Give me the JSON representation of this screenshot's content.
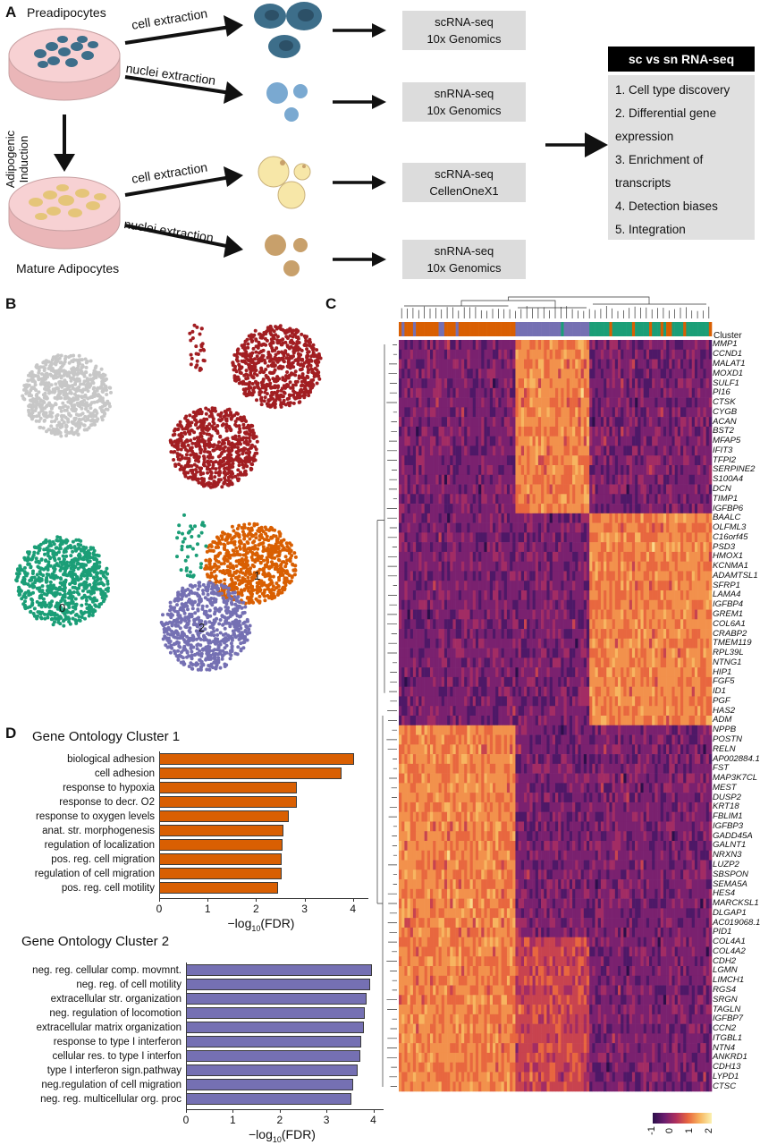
{
  "panel_letters": {
    "a": "A",
    "b": "B",
    "c": "C",
    "d": "D"
  },
  "panel_a": {
    "preadipocytes": "Preadipocytes",
    "mature": "Mature Adipocytes",
    "induction": "Adipogenic Induction",
    "cell_extraction": "cell extraction",
    "nuclei_extraction": "nuclei extraction",
    "boxes": [
      {
        "line1": "scRNA-seq",
        "line2": "10x Genomics"
      },
      {
        "line1": "snRNA-seq",
        "line2": "10x Genomics"
      },
      {
        "line1": "scRNA-seq",
        "line2": "CellenOneX1"
      },
      {
        "line1": "snRNA-seq",
        "line2": "10x Genomics"
      }
    ],
    "summary_title": "sc vs sn RNA-seq",
    "summary_items": [
      "1. Cell type discovery",
      "2. Differential gene",
      "expression",
      "3. Enrichment of",
      "transcripts",
      "4. Detection biases",
      "5. Integration"
    ],
    "colors": {
      "dish": "#f4c6c8",
      "preadip_cell": "#3d6e8a",
      "sn_nucleus": "#7aa9d1",
      "mature_cell": "#f7e7a8",
      "mature_nucleus": "#c8a06b"
    }
  },
  "panel_b": {
    "cluster_labels": [
      "0",
      "1",
      "2"
    ],
    "colors": {
      "gray": "#c7c7c7",
      "red": "#a21e22",
      "green": "#1b9e77",
      "orange": "#d95f02",
      "purple": "#7570b3"
    }
  },
  "panel_c": {
    "cluster_label": "Cluster",
    "genes": [
      "MMP1",
      "CCND1",
      "MALAT1",
      "MOXD1",
      "SULF1",
      "PI16",
      "CTSK",
      "CYGB",
      "ACAN",
      "BST2",
      "MFAP5",
      "IFIT3",
      "TFPI2",
      "SERPINE2",
      "S100A4",
      "DCN",
      "TIMP1",
      "IGFBP6",
      "BAALC",
      "OLFML3",
      "C16orf45",
      "PSD3",
      "HMOX1",
      "KCNMA1",
      "ADAMTSL1",
      "SFRP1",
      "LAMA4",
      "IGFBP4",
      "GREM1",
      "COL6A1",
      "CRABP2",
      "TMEM119",
      "RPL39L",
      "NTNG1",
      "HIP1",
      "FGF5",
      "ID1",
      "PGF",
      "HAS2",
      "ADM",
      "NPPB",
      "POSTN",
      "RELN",
      "AP002884.1",
      "FST",
      "MAP3K7CL",
      "MEST",
      "DUSP2",
      "KRT18",
      "FBLIM1",
      "IGFBP3",
      "GADD45A",
      "GALNT1",
      "NRXN3",
      "LUZP2",
      "SBSPON",
      "SEMA5A",
      "HES4",
      "MARCKSL1",
      "DLGAP1",
      "AC019068.1",
      "PID1",
      "COL4A1",
      "COL4A2",
      "CDH2",
      "LGMN",
      "LIMCH1",
      "RGS4",
      "SRGN",
      "TAGLN",
      "IGFBP7",
      "CCN2",
      "ITGBL1",
      "NTN4",
      "ANKRD1",
      "CDH13",
      "LYPD1",
      "CTSC"
    ],
    "colorbar_ticks": [
      "-1",
      "0",
      "1",
      "2"
    ],
    "cluster_colors": [
      "#d95f02",
      "#7570b3",
      "#1b9e77"
    ]
  },
  "panel_d": {
    "title1": "Gene Ontology Cluster 1",
    "title2": "Gene Ontology Cluster 2",
    "xlabel_main": "−log",
    "xlabel_sub": "10",
    "xlabel_tail": "(FDR)",
    "ticks": [
      "0",
      "1",
      "2",
      "3",
      "4"
    ]
  },
  "chart_data": [
    {
      "type": "bar",
      "title": "Gene Ontology Cluster 1",
      "xlabel": "−log10(FDR)",
      "orientation": "horizontal",
      "color": "#d95f02",
      "xlim": [
        0,
        4.3
      ],
      "categories": [
        "biological adhesion",
        "cell adhesion",
        "response to hypoxia",
        "response to decr. O2",
        "response to oxygen levels",
        "anat. str. morphogenesis",
        "regulation of localization",
        "pos. reg. cell migration",
        "regulation of cell migration",
        "pos. reg. cell motility"
      ],
      "values": [
        4.02,
        3.77,
        2.85,
        2.84,
        2.67,
        2.56,
        2.55,
        2.52,
        2.52,
        2.46
      ]
    },
    {
      "type": "bar",
      "title": "Gene Ontology Cluster 2",
      "xlabel": "−log10(FDR)",
      "orientation": "horizontal",
      "color": "#7570b3",
      "xlim": [
        0,
        4.2
      ],
      "categories": [
        "neg. reg. cellular comp. movmnt.",
        "neg. reg. of cell motility",
        "extracellular str. organization",
        "neg. regulation of locomotion",
        "extracellular matrix organization",
        "response to type I interferon",
        "cellular res. to type I interfon",
        "type I interferon sign.pathway",
        "neg.regulation of cell migration",
        "neg. reg. multicellular org. proc"
      ],
      "values": [
        3.97,
        3.94,
        3.85,
        3.82,
        3.8,
        3.74,
        3.73,
        3.66,
        3.57,
        3.53
      ]
    }
  ]
}
